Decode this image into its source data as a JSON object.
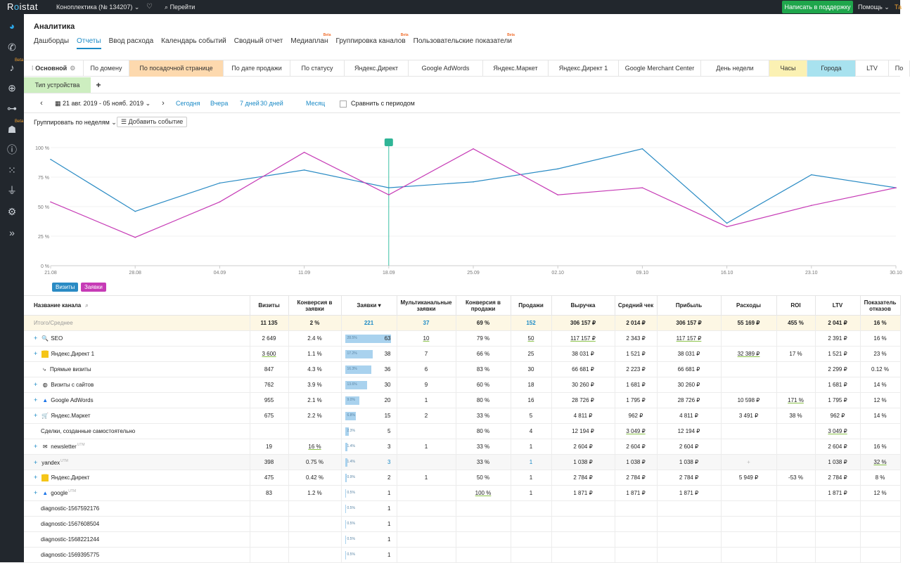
{
  "topbar": {
    "logo_a": "R",
    "logo_o": "o",
    "logo_b": "istat",
    "project": "Коноплектика (№ 134207) ⌄",
    "goto": "Перейти",
    "support": "Написать в поддержку",
    "help": "Помощь ⌄",
    "extra": "Та"
  },
  "sidebar": {
    "beta": "Beta",
    "icons": [
      "chart-pie-icon",
      "phone-icon",
      "mic-icon",
      "target-icon",
      "flow-icon",
      "robot-icon",
      "alert-icon",
      "apps-icon",
      "plug-icon",
      "gear-icon",
      "expand-icon"
    ]
  },
  "page": {
    "title": "Аналитика"
  },
  "nav": {
    "tabs": [
      {
        "label": "Дашборды"
      },
      {
        "label": "Отчеты",
        "active": true
      },
      {
        "label": "Ввод расхода"
      },
      {
        "label": "Календарь событий"
      },
      {
        "label": "Сводный отчет"
      },
      {
        "label": "Медиаплан",
        "beta": "Beta"
      },
      {
        "label": "Группировка каналов",
        "beta": "Beta"
      },
      {
        "label": "Пользовательские показатели",
        "beta": "Beta"
      }
    ]
  },
  "report_tabs": {
    "main": "Основной",
    "row1": [
      "По домену",
      "По посадочной странице",
      "По дате продажи",
      "По статусу",
      "Яндекс.Директ",
      "Google AdWords",
      "Яндекс.Маркет",
      "Яндекс.Директ 1",
      "Google Merchant Center",
      "День недели",
      "Часы",
      "Города",
      "LTV",
      "По"
    ],
    "row2": [
      "Тип устройства"
    ],
    "add": "+"
  },
  "datebar": {
    "range": "21 авг. 2019 - 05 нояб. 2019",
    "links": [
      "Сегодня",
      "Вчера",
      "7 дней",
      "30 дней",
      "Месяц"
    ],
    "compare": "Сравнить с периодом"
  },
  "toolbar": {
    "group": "Группировать по неделям",
    "add_event": "Добавить событие"
  },
  "chart_data": {
    "type": "line",
    "x": [
      "21.08",
      "28.08",
      "04.09",
      "11.09",
      "18.09",
      "25.09",
      "02.10",
      "09.10",
      "16.10",
      "23.10",
      "30.10"
    ],
    "ylim": [
      0,
      100
    ],
    "yticks": [
      "100 %",
      "75 %",
      "50 %",
      "25 %",
      "0 %"
    ],
    "marker_at": "18.09",
    "series": [
      {
        "name": "Визиты",
        "color": "#2a8bc4",
        "values": [
          90,
          46,
          70,
          81,
          66,
          71,
          82,
          99,
          36,
          77,
          66
        ]
      },
      {
        "name": "Заявки",
        "color": "#c63bb6",
        "values": [
          54,
          24,
          54,
          96,
          60,
          99,
          60,
          66,
          33,
          51,
          66
        ]
      }
    ]
  },
  "table": {
    "headers": [
      "Название канала",
      "Визиты",
      "Конверсия в заявки",
      "Заявки ▾",
      "Мультиканальные заявки",
      "Конверсия в продажи",
      "Продажи",
      "Выручка",
      "Средний чек",
      "Прибыль",
      "Расходы",
      "ROI",
      "LTV",
      "Показатель отказов"
    ],
    "total": {
      "name": "Итого/Среднее",
      "cells": [
        "11 135",
        "2 %",
        "221",
        "37",
        "69 %",
        "152",
        "306 157 ₽",
        "2 014 ₽",
        "306 157 ₽",
        "55 169 ₽",
        "455 %",
        "2 041 ₽",
        "16 %"
      ]
    },
    "rows": [
      {
        "plus": true,
        "icon": "search-icon",
        "glyph": "🔍",
        "name": "SEO",
        "visits": "2 649",
        "conv": "2.4 %",
        "bar": 28.5,
        "bar_label": "28.5%",
        "leads": "63",
        "multi": "10",
        "conv_sales": "79 %",
        "sales": "50",
        "revenue": "117 157 ₽",
        "avg": "2 343 ₽",
        "profit": "117 157 ₽",
        "cost": "",
        "roi": "",
        "ltv": "2 391 ₽",
        "bounce": "16 %"
      },
      {
        "plus": true,
        "icon": "yandex-direct-icon",
        "glyph": "▀",
        "name": "Яндекс.Директ 1",
        "visits": "3 600",
        "conv": "1.1 %",
        "bar": 17.2,
        "bar_label": "17.2%",
        "leads": "38",
        "multi": "7",
        "conv_sales": "66 %",
        "sales": "25",
        "revenue": "38 031 ₽",
        "avg": "1 521 ₽",
        "profit": "38 031 ₽",
        "cost": "32 389 ₽",
        "roi": "17 %",
        "ltv": "1 521 ₽",
        "bounce": "23 %"
      },
      {
        "plus": false,
        "icon": "direct-visits-icon",
        "glyph": "⤷",
        "name": "Прямые визиты",
        "visits": "847",
        "conv": "4.3 %",
        "bar": 16.3,
        "bar_label": "16.3%",
        "leads": "36",
        "multi": "6",
        "conv_sales": "83 %",
        "sales": "30",
        "revenue": "66 681 ₽",
        "avg": "2 223 ₽",
        "profit": "66 681 ₽",
        "cost": "",
        "roi": "",
        "ltv": "2 299 ₽",
        "bounce": "0.12 %"
      },
      {
        "plus": true,
        "icon": "globe-icon",
        "glyph": "◍",
        "name": "Визиты с сайтов",
        "visits": "762",
        "conv": "3.9 %",
        "bar": 13.6,
        "bar_label": "13.6%",
        "leads": "30",
        "multi": "9",
        "conv_sales": "60 %",
        "sales": "18",
        "revenue": "30 260 ₽",
        "avg": "1 681 ₽",
        "profit": "30 260 ₽",
        "cost": "",
        "roi": "",
        "ltv": "1 681 ₽",
        "bounce": "14 %"
      },
      {
        "plus": true,
        "icon": "google-ads-icon",
        "glyph": "▲",
        "name": "Google AdWords",
        "visits": "955",
        "conv": "2.1 %",
        "bar": 9.0,
        "bar_label": "9.0%",
        "leads": "20",
        "multi": "1",
        "conv_sales": "80 %",
        "sales": "16",
        "revenue": "28 726 ₽",
        "avg": "1 795 ₽",
        "profit": "28 726 ₽",
        "cost": "10 598 ₽",
        "roi": "171 %",
        "ltv": "1 795 ₽",
        "bounce": "12 %"
      },
      {
        "plus": true,
        "icon": "cart-icon",
        "glyph": "🛒",
        "name": "Яндекс.Маркет",
        "visits": "675",
        "conv": "2.2 %",
        "bar": 6.8,
        "bar_label": "6.8%",
        "leads": "15",
        "multi": "2",
        "conv_sales": "33 %",
        "sales": "5",
        "revenue": "4 811 ₽",
        "avg": "962 ₽",
        "profit": "4 811 ₽",
        "cost": "3 491 ₽",
        "roi": "38 %",
        "ltv": "962 ₽",
        "bounce": "14 %"
      },
      {
        "plus": false,
        "icon": "",
        "glyph": "",
        "name": "Сделки, созданные самостоятельно",
        "visits": "",
        "conv": "",
        "bar": 2.3,
        "bar_label": "2.3%",
        "leads": "5",
        "multi": "",
        "conv_sales": "80 %",
        "sales": "4",
        "revenue": "12 194 ₽",
        "avg": "3 049 ₽",
        "profit": "12 194 ₽",
        "cost": "",
        "roi": "",
        "ltv": "3 049 ₽",
        "bounce": ""
      },
      {
        "plus": true,
        "icon": "mail-icon",
        "glyph": "✉",
        "name": "newsletter",
        "utm": "UTM",
        "visits": "19",
        "conv": "16 %",
        "bar": 1.4,
        "bar_label": "1.4%",
        "leads": "3",
        "multi": "1",
        "conv_sales": "33 %",
        "sales": "1",
        "revenue": "2 604 ₽",
        "avg": "2 604 ₽",
        "profit": "2 604 ₽",
        "cost": "",
        "roi": "",
        "ltv": "2 604 ₽",
        "bounce": "16 %"
      },
      {
        "plus": true,
        "icon": "",
        "glyph": "",
        "name": "yandex",
        "utm": "UTM",
        "visits": "398",
        "conv": "0.75 %",
        "bar": 1.4,
        "bar_label": "1.4%",
        "leads": "3",
        "multi": "",
        "conv_sales": "33 %",
        "sales": "1",
        "revenue": "1 038 ₽",
        "avg": "1 038 ₽",
        "profit": "1 038 ₽",
        "cost": "+",
        "roi": "",
        "ltv": "1 038 ₽",
        "bounce": "32 %",
        "highlight": true
      },
      {
        "plus": true,
        "icon": "yandex-direct-icon",
        "glyph": "▀",
        "name": "Яндекс.Директ",
        "visits": "475",
        "conv": "0.42 %",
        "bar": 0.9,
        "bar_label": "0.9%",
        "leads": "2",
        "multi": "1",
        "conv_sales": "50 %",
        "sales": "1",
        "revenue": "2 784 ₽",
        "avg": "2 784 ₽",
        "profit": "2 784 ₽",
        "cost": "5 949 ₽",
        "roi": "-53 %",
        "ltv": "2 784 ₽",
        "bounce": "8 %"
      },
      {
        "plus": true,
        "icon": "google-ads-icon",
        "glyph": "▲",
        "name": "google",
        "utm": "UTM",
        "visits": "83",
        "conv": "1.2 %",
        "bar": 0.5,
        "bar_label": "0.5%",
        "leads": "1",
        "multi": "",
        "conv_sales": "100 %",
        "sales": "1",
        "revenue": "1 871 ₽",
        "avg": "1 871 ₽",
        "profit": "1 871 ₽",
        "cost": "",
        "roi": "",
        "ltv": "1 871 ₽",
        "bounce": "12 %"
      },
      {
        "plus": false,
        "icon": "",
        "glyph": "",
        "name": "diagnostic-1567592176",
        "visits": "",
        "conv": "",
        "bar": 0.5,
        "bar_label": "0.5%",
        "leads": "1",
        "multi": "",
        "conv_sales": "",
        "sales": "",
        "revenue": "",
        "avg": "",
        "profit": "",
        "cost": "",
        "roi": "",
        "ltv": "",
        "bounce": ""
      },
      {
        "plus": false,
        "icon": "",
        "glyph": "",
        "name": "diagnostic-1567608504",
        "visits": "",
        "conv": "",
        "bar": 0.5,
        "bar_label": "0.5%",
        "leads": "1",
        "multi": "",
        "conv_sales": "",
        "sales": "",
        "revenue": "",
        "avg": "",
        "profit": "",
        "cost": "",
        "roi": "",
        "ltv": "",
        "bounce": ""
      },
      {
        "plus": false,
        "icon": "",
        "glyph": "",
        "name": "diagnostic-1568221244",
        "visits": "",
        "conv": "",
        "bar": 0.5,
        "bar_label": "0.5%",
        "leads": "1",
        "multi": "",
        "conv_sales": "",
        "sales": "",
        "revenue": "",
        "avg": "",
        "profit": "",
        "cost": "",
        "roi": "",
        "ltv": "",
        "bounce": ""
      },
      {
        "plus": false,
        "icon": "",
        "glyph": "",
        "name": "diagnostic-1569395775",
        "visits": "",
        "conv": "",
        "bar": 0.5,
        "bar_label": "0.5%",
        "leads": "1",
        "multi": "",
        "conv_sales": "",
        "sales": "",
        "revenue": "",
        "avg": "",
        "profit": "",
        "cost": "",
        "roi": "",
        "ltv": "",
        "bounce": ""
      }
    ]
  }
}
